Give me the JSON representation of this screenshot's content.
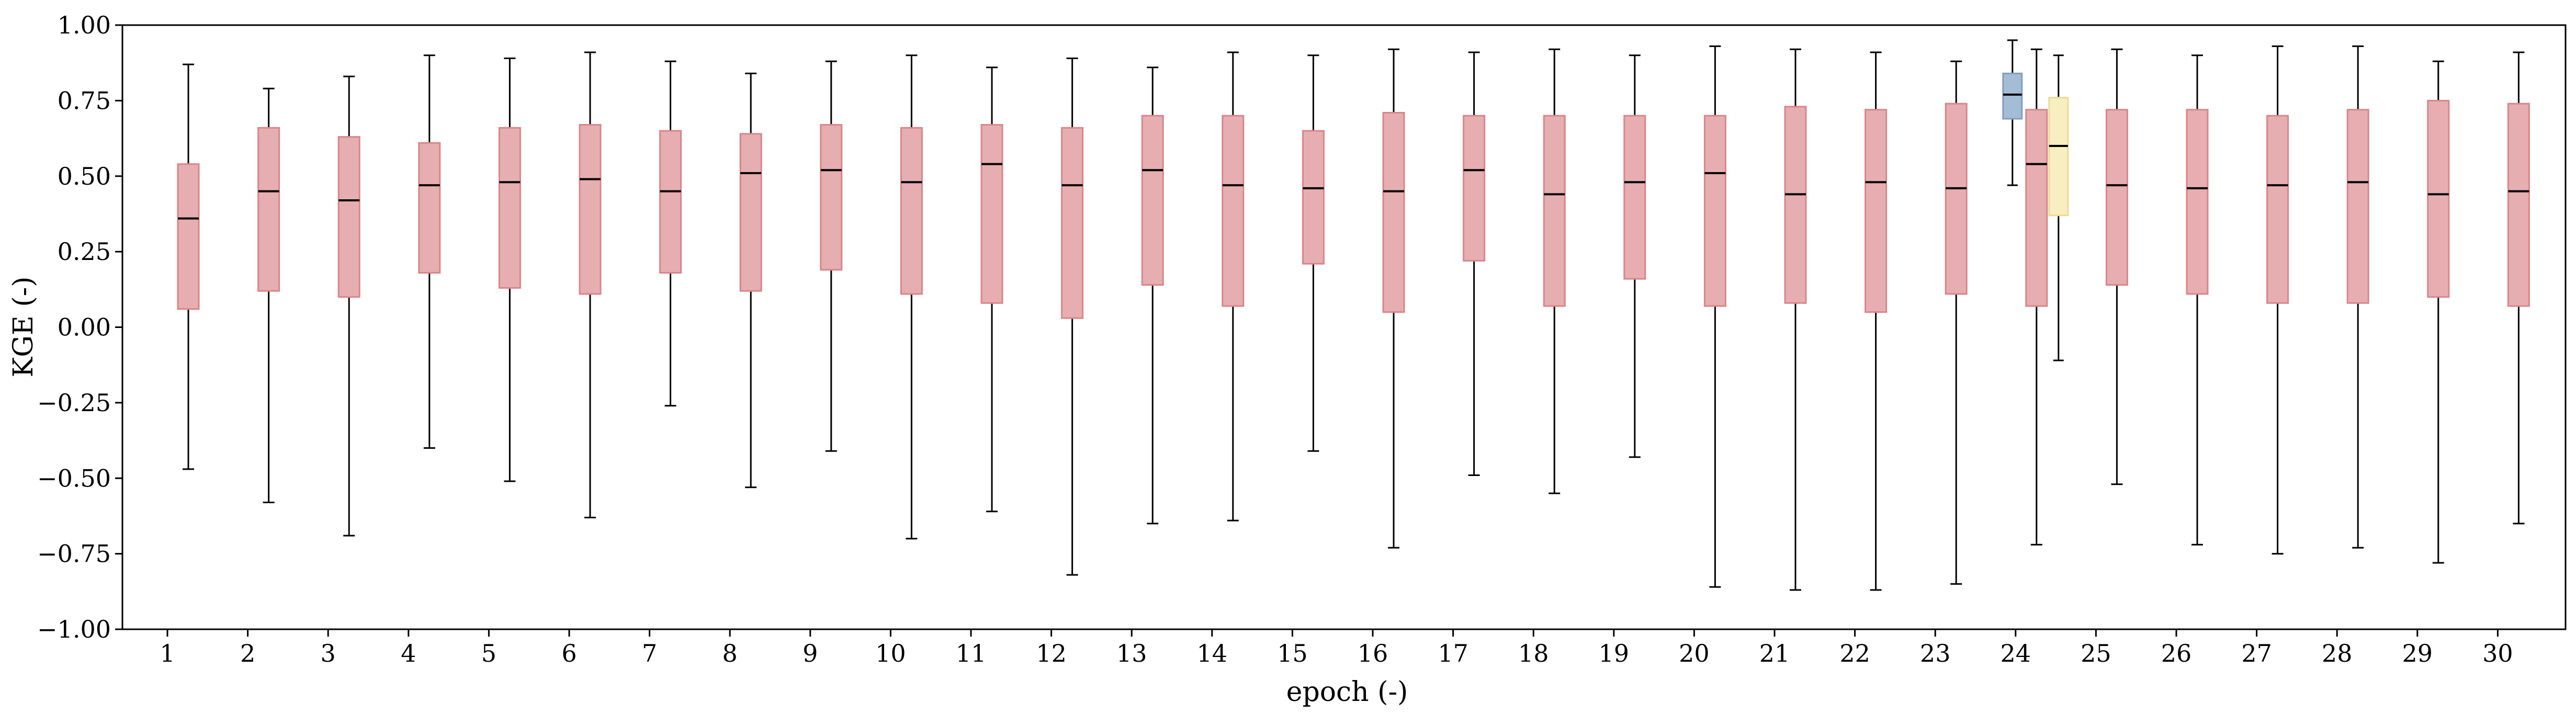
{
  "chart_data": {
    "type": "boxplot",
    "xlabel": "epoch (-)",
    "ylabel": "KGE (-)",
    "ylim": [
      -1.0,
      1.0
    ],
    "yticks": [
      -1.0,
      -0.75,
      -0.5,
      -0.25,
      0.0,
      0.25,
      0.5,
      0.75,
      1.0
    ],
    "ytick_labels": [
      "−1.00",
      "−0.75",
      "−0.50",
      "−0.25",
      "0.00",
      "0.25",
      "0.50",
      "0.75",
      "1.00"
    ],
    "categories": [
      "1",
      "2",
      "3",
      "4",
      "5",
      "6",
      "7",
      "8",
      "9",
      "10",
      "11",
      "12",
      "13",
      "14",
      "15",
      "16",
      "17",
      "18",
      "19",
      "20",
      "21",
      "22",
      "23",
      "24",
      "25",
      "26",
      "27",
      "28",
      "29",
      "30"
    ],
    "grid": false,
    "legend": "none",
    "colors": {
      "main_fill": "#e6aeb0",
      "main_edge": "#d9858a",
      "blue_fill": "#a4bcd6",
      "blue_edge": "#7f9fc2",
      "yellow_fill": "#f8eec0",
      "yellow_edge": "#e9dc98",
      "line": "#000000"
    },
    "series": [
      {
        "style": "main",
        "boxes": [
          {
            "epoch": 1,
            "whislo": -0.47,
            "q1": 0.06,
            "med": 0.36,
            "q3": 0.54,
            "whishi": 0.87
          },
          {
            "epoch": 2,
            "whislo": -0.58,
            "q1": 0.12,
            "med": 0.45,
            "q3": 0.66,
            "whishi": 0.79
          },
          {
            "epoch": 3,
            "whislo": -0.69,
            "q1": 0.1,
            "med": 0.42,
            "q3": 0.63,
            "whishi": 0.83
          },
          {
            "epoch": 4,
            "whislo": -0.4,
            "q1": 0.18,
            "med": 0.47,
            "q3": 0.61,
            "whishi": 0.9
          },
          {
            "epoch": 5,
            "whislo": -0.51,
            "q1": 0.13,
            "med": 0.48,
            "q3": 0.66,
            "whishi": 0.89
          },
          {
            "epoch": 6,
            "whislo": -0.63,
            "q1": 0.11,
            "med": 0.49,
            "q3": 0.67,
            "whishi": 0.91
          },
          {
            "epoch": 7,
            "whislo": -0.26,
            "q1": 0.18,
            "med": 0.45,
            "q3": 0.65,
            "whishi": 0.88
          },
          {
            "epoch": 8,
            "whislo": -0.53,
            "q1": 0.12,
            "med": 0.51,
            "q3": 0.64,
            "whishi": 0.84
          },
          {
            "epoch": 9,
            "whislo": -0.41,
            "q1": 0.19,
            "med": 0.52,
            "q3": 0.67,
            "whishi": 0.88
          },
          {
            "epoch": 10,
            "whislo": -0.7,
            "q1": 0.11,
            "med": 0.48,
            "q3": 0.66,
            "whishi": 0.9
          },
          {
            "epoch": 11,
            "whislo": -0.61,
            "q1": 0.08,
            "med": 0.54,
            "q3": 0.67,
            "whishi": 0.86
          },
          {
            "epoch": 12,
            "whislo": -0.82,
            "q1": 0.03,
            "med": 0.47,
            "q3": 0.66,
            "whishi": 0.89
          },
          {
            "epoch": 13,
            "whislo": -0.65,
            "q1": 0.14,
            "med": 0.52,
            "q3": 0.7,
            "whishi": 0.86
          },
          {
            "epoch": 14,
            "whislo": -0.64,
            "q1": 0.07,
            "med": 0.47,
            "q3": 0.7,
            "whishi": 0.91
          },
          {
            "epoch": 15,
            "whislo": -0.41,
            "q1": 0.21,
            "med": 0.46,
            "q3": 0.65,
            "whishi": 0.9
          },
          {
            "epoch": 16,
            "whislo": -0.73,
            "q1": 0.05,
            "med": 0.45,
            "q3": 0.71,
            "whishi": 0.92
          },
          {
            "epoch": 17,
            "whislo": -0.49,
            "q1": 0.22,
            "med": 0.52,
            "q3": 0.7,
            "whishi": 0.91
          },
          {
            "epoch": 18,
            "whislo": -0.55,
            "q1": 0.07,
            "med": 0.44,
            "q3": 0.7,
            "whishi": 0.92
          },
          {
            "epoch": 19,
            "whislo": -0.43,
            "q1": 0.16,
            "med": 0.48,
            "q3": 0.7,
            "whishi": 0.9
          },
          {
            "epoch": 20,
            "whislo": -0.86,
            "q1": 0.07,
            "med": 0.51,
            "q3": 0.7,
            "whishi": 0.93
          },
          {
            "epoch": 21,
            "whislo": -0.87,
            "q1": 0.08,
            "med": 0.44,
            "q3": 0.73,
            "whishi": 0.92
          },
          {
            "epoch": 22,
            "whislo": -0.87,
            "q1": 0.05,
            "med": 0.48,
            "q3": 0.72,
            "whishi": 0.91
          },
          {
            "epoch": 23,
            "whislo": -0.85,
            "q1": 0.11,
            "med": 0.46,
            "q3": 0.74,
            "whishi": 0.88
          },
          {
            "epoch": 24,
            "whislo": -0.72,
            "q1": 0.07,
            "med": 0.54,
            "q3": 0.72,
            "whishi": 0.92,
            "offset": 0.0
          },
          {
            "epoch": 25,
            "whislo": -0.52,
            "q1": 0.14,
            "med": 0.47,
            "q3": 0.72,
            "whishi": 0.92
          },
          {
            "epoch": 26,
            "whislo": -0.72,
            "q1": 0.11,
            "med": 0.46,
            "q3": 0.72,
            "whishi": 0.9
          },
          {
            "epoch": 27,
            "whislo": -0.75,
            "q1": 0.08,
            "med": 0.47,
            "q3": 0.7,
            "whishi": 0.93
          },
          {
            "epoch": 28,
            "whislo": -0.73,
            "q1": 0.08,
            "med": 0.48,
            "q3": 0.72,
            "whishi": 0.93
          },
          {
            "epoch": 29,
            "whislo": -0.78,
            "q1": 0.1,
            "med": 0.44,
            "q3": 0.75,
            "whishi": 0.88
          },
          {
            "epoch": 30,
            "whislo": -0.65,
            "q1": 0.07,
            "med": 0.45,
            "q3": 0.74,
            "whishi": 0.91
          }
        ]
      },
      {
        "style": "blue",
        "boxes": [
          {
            "epoch": 24,
            "whislo": 0.47,
            "q1": 0.69,
            "med": 0.77,
            "q3": 0.84,
            "whishi": 0.95
          }
        ]
      },
      {
        "style": "yellow",
        "boxes": [
          {
            "epoch": 24,
            "whislo": -0.11,
            "q1": 0.37,
            "med": 0.6,
            "q3": 0.76,
            "whishi": 0.9
          }
        ]
      }
    ]
  }
}
